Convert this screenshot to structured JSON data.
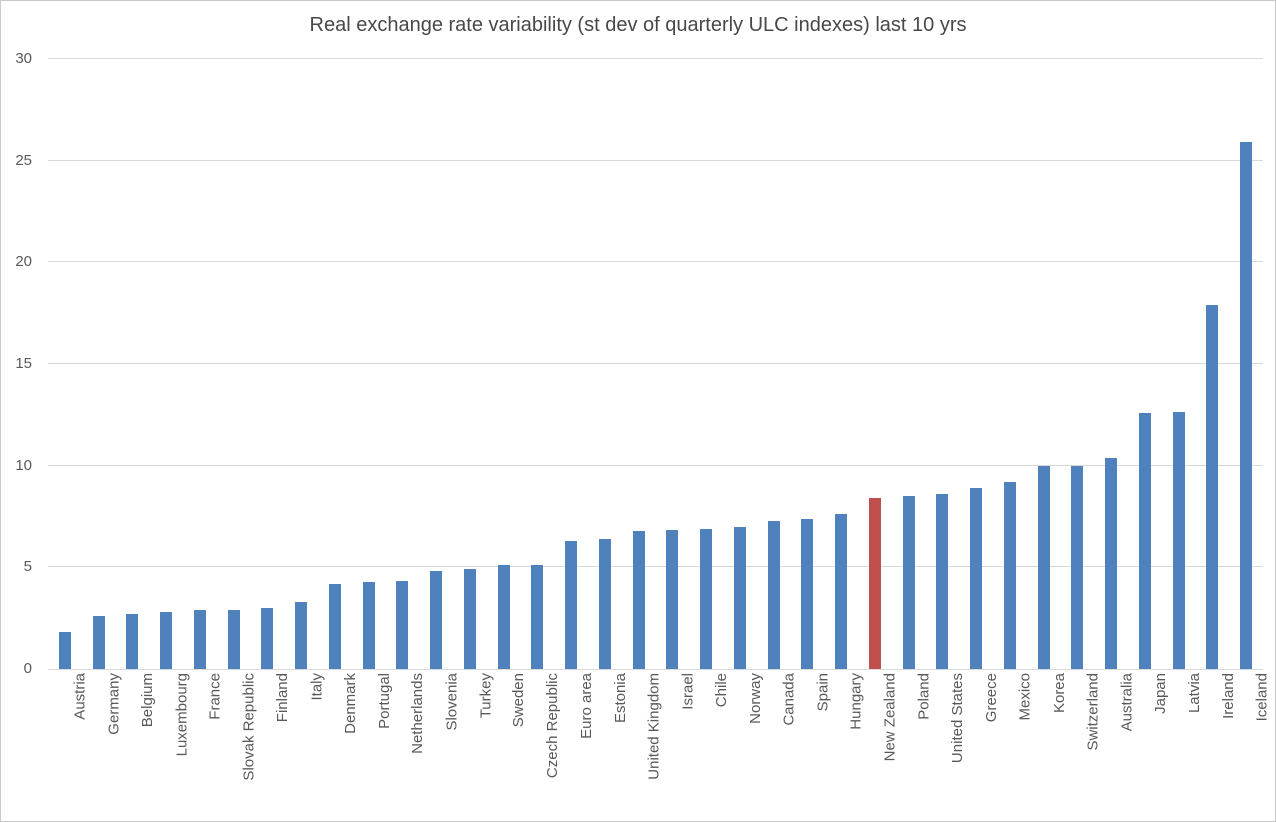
{
  "chart_data": {
    "type": "bar",
    "title": "Real exchange rate variability (st dev of quarterly ULC indexes) last 10 yrs",
    "xlabel": "",
    "ylabel": "",
    "categories": [
      "Austria",
      "Germany",
      "Belgium",
      "Luxembourg",
      "France",
      "Slovak Republic",
      "Finland",
      "Italy",
      "Denmark",
      "Portugal",
      "Netherlands",
      "Slovenia",
      "Turkey",
      "Sweden",
      "Czech Republic",
      "Euro area",
      "Estonia",
      "United Kingdom",
      "Israel",
      "Chile",
      "Norway",
      "Canada",
      "Spain",
      "Hungary",
      "New Zealand",
      "Poland",
      "United States",
      "Greece",
      "Mexico",
      "Korea",
      "Switzerland",
      "Australia",
      "Japan",
      "Latvia",
      "Ireland",
      "Iceland"
    ],
    "values": [
      1.8,
      2.6,
      2.7,
      2.8,
      2.9,
      2.9,
      3.0,
      3.3,
      4.2,
      4.3,
      4.35,
      4.8,
      4.9,
      5.1,
      5.1,
      6.3,
      6.4,
      6.8,
      6.85,
      6.9,
      7.0,
      7.3,
      7.4,
      7.6,
      8.4,
      8.5,
      8.6,
      8.9,
      9.2,
      10.0,
      10.0,
      10.4,
      12.6,
      12.65,
      17.9,
      25.9
    ],
    "highlight_category": "New Zealand",
    "highlight_index": 24,
    "bar_color": "#4f81bd",
    "highlight_color": "#c0504d",
    "y_ticks": [
      0,
      5,
      10,
      15,
      20,
      25,
      30
    ],
    "ylim": [
      0,
      30
    ],
    "grid": true,
    "gridline_color": "#d9d9d9",
    "axis_text_color": "#595959",
    "title_color": "#484848",
    "legend_position": "none",
    "background_color": "#ffffff"
  }
}
